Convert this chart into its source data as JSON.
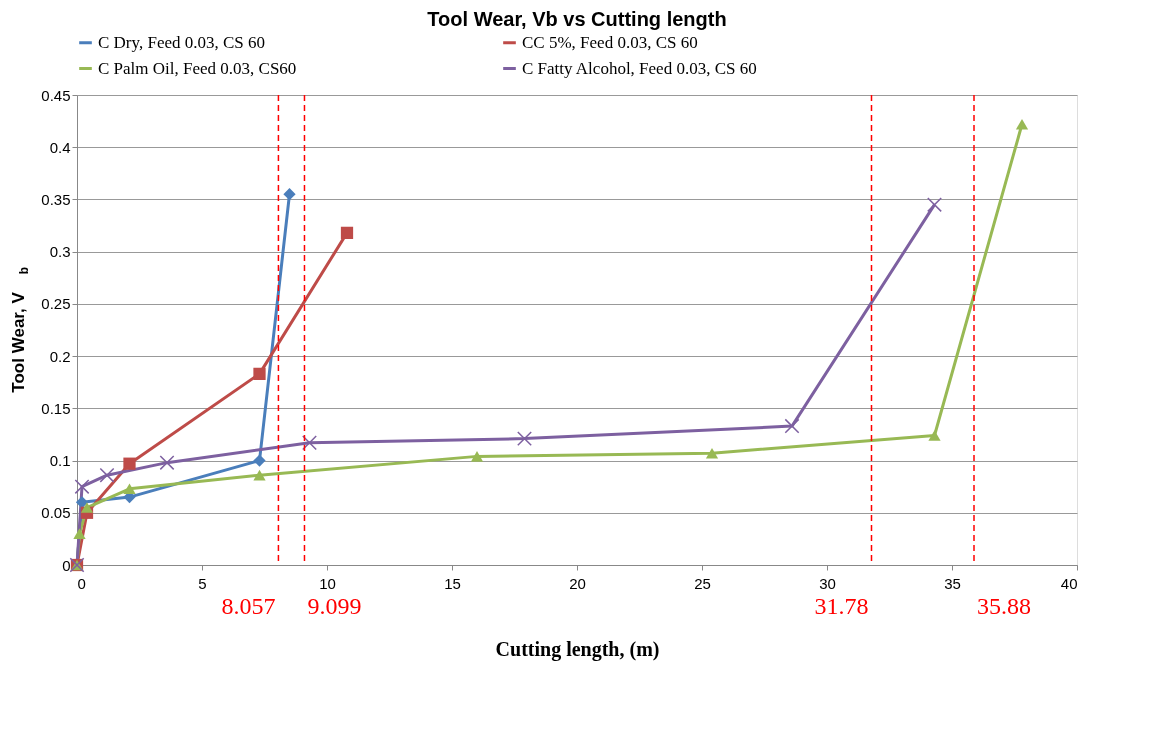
{
  "chart_data": {
    "type": "line",
    "title": "Tool Wear, Vb vs Cutting length",
    "xlabel": "Cutting length, (m)",
    "ylabel": "Tool Wear, V$_{b}$",
    "series": [
      {
        "name": "C Dry, Feed 0.03, CS 60",
        "color": "#4a7ebb",
        "marker": "diamond",
        "x": [
          0,
          0.2,
          2.1,
          7.3,
          8.5
        ],
        "values": [
          0,
          0.06,
          0.065,
          0.1,
          0.355
        ]
      },
      {
        "name": "CC 5%, Feed 0.03, CS 60",
        "color": "#be4b48",
        "marker": "square",
        "x": [
          0,
          0.4,
          2.1,
          7.3,
          10.8
        ],
        "values": [
          0,
          0.05,
          0.097,
          0.183,
          0.318
        ]
      },
      {
        "name": "C Palm Oil, Feed 0.03, CS60",
        "color": "#98b954",
        "marker": "triangle",
        "x": [
          0,
          0.1,
          0.4,
          2.1,
          7.3,
          16,
          25.4,
          34.3,
          37.8
        ],
        "values": [
          0,
          0.03,
          0.055,
          0.073,
          0.086,
          0.104,
          0.107,
          0.124,
          0.422
        ]
      },
      {
        "name": "C Fatty Alcohol, Feed 0.03, CS 60",
        "color": "#7d60a0",
        "marker": "cross",
        "x": [
          0,
          0.2,
          1.2,
          3.6,
          9.3,
          17.9,
          28.6,
          34.3
        ],
        "values": [
          0,
          0.075,
          0.086,
          0.098,
          0.117,
          0.121,
          0.133,
          0.345
        ]
      }
    ],
    "xlim": [
      0,
      40
    ],
    "xticks": [
      0,
      5,
      10,
      15,
      20,
      25,
      30,
      35,
      40
    ],
    "ylim": [
      0,
      0.45
    ],
    "yticks": [
      0,
      0.05,
      0.1,
      0.15,
      0.2,
      0.25,
      0.3,
      0.35,
      0.4,
      0.45
    ],
    "ref_lines": [
      {
        "axis": "x",
        "value": 8.057,
        "label": "8.057",
        "color": "#ff0000",
        "line_style": "dashed"
      },
      {
        "axis": "x",
        "value": 9.099,
        "label": "9.099",
        "color": "#ff0000",
        "line_style": "dashed"
      },
      {
        "axis": "x",
        "value": 31.78,
        "label": "31.78",
        "color": "#ff0000",
        "line_style": "dashed"
      },
      {
        "axis": "x",
        "value": 35.88,
        "label": "35.88",
        "color": "#ff0000",
        "line_style": "dashed"
      }
    ],
    "grid": "y",
    "legend": "top",
    "line_style": "solid"
  }
}
